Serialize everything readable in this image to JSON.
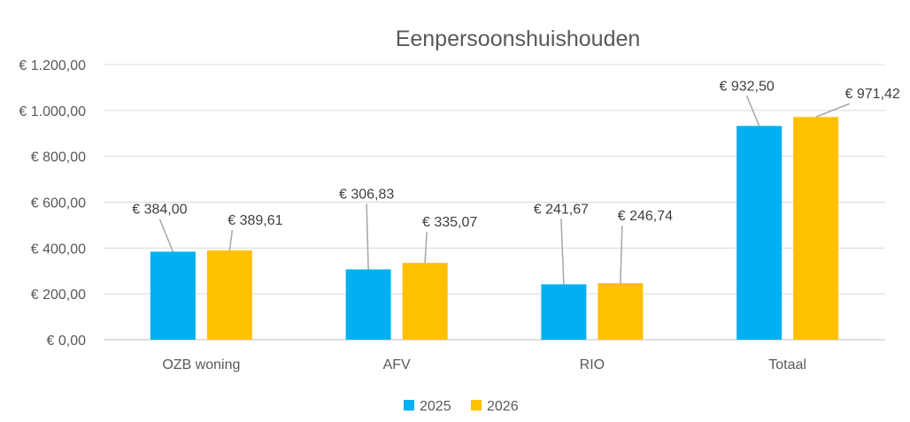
{
  "chart_data": {
    "type": "bar",
    "title": "Eenpersoonshuishouden",
    "xlabel": "",
    "ylabel": "",
    "ylim": [
      0,
      1200
    ],
    "ytick_values": [
      0,
      200,
      400,
      600,
      800,
      1000,
      1200
    ],
    "ytick_labels": [
      "€ 0,00",
      "€ 200,00",
      "€ 400,00",
      "€ 600,00",
      "€ 800,00",
      "€ 1.000,00",
      "€ 1.200,00"
    ],
    "categories": [
      "OZB woning",
      "AFV",
      "RIO",
      "Totaal"
    ],
    "series": [
      {
        "name": "2025",
        "color": "#00B0F0",
        "values": [
          384.0,
          306.83,
          241.67,
          932.5
        ],
        "labels": [
          "€ 384,00",
          "€ 306,83",
          "€ 241,67",
          "€ 932,50"
        ]
      },
      {
        "name": "2026",
        "color": "#FFC000",
        "values": [
          389.61,
          335.07,
          246.74,
          971.42
        ],
        "labels": [
          "€ 389,61",
          "€ 335,07",
          "€ 246,74",
          "€ 971,42"
        ]
      }
    ],
    "grid": true,
    "legend_position": "bottom"
  }
}
